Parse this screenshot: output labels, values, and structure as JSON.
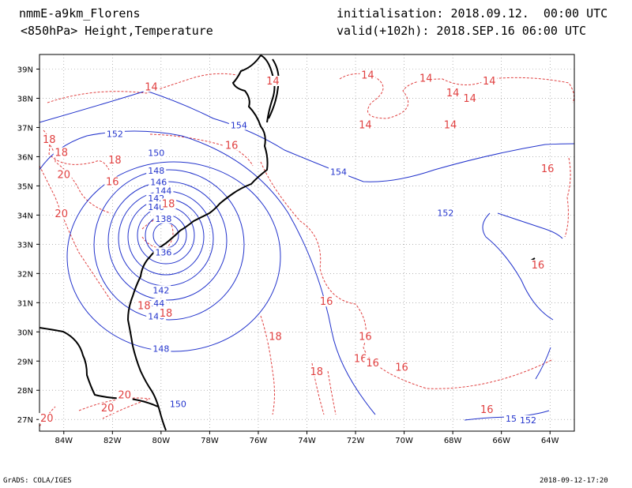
{
  "header": {
    "model": "nmmE-a9km_Florens",
    "level": "<850hPa> Height,Temperature",
    "init": "initialisation: 2018.09.12.  00:00 UTC",
    "valid": "valid(+102h): 2018.SEP.16 06:00 UTC"
  },
  "footer": {
    "left": "GrADS: COLA/IGES",
    "right": "2018-09-12-17:20"
  },
  "colors": {
    "height_contour": "#2233cc",
    "temperature_contour": "#e04040",
    "coastline": "#000000",
    "grid": "#888888"
  },
  "axes": {
    "lat_labels": [
      "39N",
      "38N",
      "37N",
      "36N",
      "35N",
      "34N",
      "33N",
      "32N",
      "31N",
      "30N",
      "29N",
      "28N",
      "27N"
    ],
    "lon_labels": [
      "84W",
      "82W",
      "80W",
      "78W",
      "76W",
      "74W",
      "72W",
      "70W",
      "68W",
      "66W",
      "64W"
    ],
    "lat_values": [
      39,
      38,
      37,
      36,
      35,
      34,
      33,
      32,
      31,
      30,
      29,
      28,
      27
    ],
    "lon_values": [
      -84,
      -82,
      -80,
      -78,
      -76,
      -74,
      -72,
      -70,
      -68,
      -66,
      -64
    ],
    "lon_range": [
      -85,
      -63
    ],
    "lat_range": [
      26.6,
      39.5
    ],
    "grid": "dotted"
  },
  "height_labels": [
    {
      "text": "154",
      "lon": -76.8,
      "lat": 37.0
    },
    {
      "text": "152",
      "lon": -81.9,
      "lat": 36.7
    },
    {
      "text": "150",
      "lon": -80.2,
      "lat": 36.05
    },
    {
      "text": "148",
      "lon": -80.2,
      "lat": 35.45
    },
    {
      "text": "146",
      "lon": -80.1,
      "lat": 35.05
    },
    {
      "text": "144",
      "lon": -79.9,
      "lat": 34.75
    },
    {
      "text": "142",
      "lon": -80.2,
      "lat": 34.5
    },
    {
      "text": "140",
      "lon": -80.2,
      "lat": 34.2
    },
    {
      "text": "138",
      "lon": -79.9,
      "lat": 33.8
    },
    {
      "text": "136",
      "lon": -79.9,
      "lat": 32.65
    },
    {
      "text": "142",
      "lon": -80.0,
      "lat": 31.35
    },
    {
      "text": "144",
      "lon": -80.2,
      "lat": 30.9
    },
    {
      "text": "146",
      "lon": -80.2,
      "lat": 30.45
    },
    {
      "text": "148",
      "lon": -80.0,
      "lat": 29.35
    },
    {
      "text": "150",
      "lon": -79.3,
      "lat": 27.45
    },
    {
      "text": "154",
      "lon": -72.7,
      "lat": 35.4
    },
    {
      "text": "152",
      "lon": -68.3,
      "lat": 34.0
    },
    {
      "text": "152",
      "lon": -64.9,
      "lat": 26.9
    },
    {
      "text": "15",
      "lon": -65.6,
      "lat": 26.95
    }
  ],
  "temperature_labels": [
    {
      "text": "14",
      "lon": -80.4,
      "lat": 38.3
    },
    {
      "text": "14",
      "lon": -75.4,
      "lat": 38.5
    },
    {
      "text": "14",
      "lon": -71.5,
      "lat": 38.7
    },
    {
      "text": "14",
      "lon": -69.1,
      "lat": 38.6
    },
    {
      "text": "14",
      "lon": -66.5,
      "lat": 38.5
    },
    {
      "text": "14",
      "lon": -68.0,
      "lat": 38.1
    },
    {
      "text": "14",
      "lon": -67.3,
      "lat": 37.9
    },
    {
      "text": "14",
      "lon": -71.6,
      "lat": 37.0
    },
    {
      "text": "14",
      "lon": -68.1,
      "lat": 37.0
    },
    {
      "text": "16",
      "lon": -77.1,
      "lat": 36.3
    },
    {
      "text": "16",
      "lon": -64.1,
      "lat": 35.5
    },
    {
      "text": "16",
      "lon": -64.5,
      "lat": 32.2
    },
    {
      "text": "16",
      "lon": -73.2,
      "lat": 30.95
    },
    {
      "text": "16",
      "lon": -71.6,
      "lat": 29.75
    },
    {
      "text": "16",
      "lon": -71.8,
      "lat": 29.0
    },
    {
      "text": "16",
      "lon": -71.3,
      "lat": 28.85
    },
    {
      "text": "16",
      "lon": -70.1,
      "lat": 28.7
    },
    {
      "text": "16",
      "lon": -66.6,
      "lat": 27.25
    },
    {
      "text": "18",
      "lon": -84.6,
      "lat": 36.5
    },
    {
      "text": "18",
      "lon": -84.1,
      "lat": 36.05
    },
    {
      "text": "18",
      "lon": -81.9,
      "lat": 35.8
    },
    {
      "text": "16",
      "lon": -82.0,
      "lat": 35.05
    },
    {
      "text": "20",
      "lon": -84.0,
      "lat": 35.3
    },
    {
      "text": "18",
      "lon": -79.7,
      "lat": 34.3
    },
    {
      "text": "18",
      "lon": -80.7,
      "lat": 30.8
    },
    {
      "text": "18",
      "lon": -79.8,
      "lat": 30.55
    },
    {
      "text": "18",
      "lon": -75.3,
      "lat": 29.75
    },
    {
      "text": "18",
      "lon": -73.6,
      "lat": 28.55
    },
    {
      "text": "20",
      "lon": -84.1,
      "lat": 33.95
    },
    {
      "text": "20",
      "lon": -81.5,
      "lat": 27.75
    },
    {
      "text": "20",
      "lon": -82.2,
      "lat": 27.3
    },
    {
      "text": "20",
      "lon": -84.7,
      "lat": 26.95
    }
  ]
}
